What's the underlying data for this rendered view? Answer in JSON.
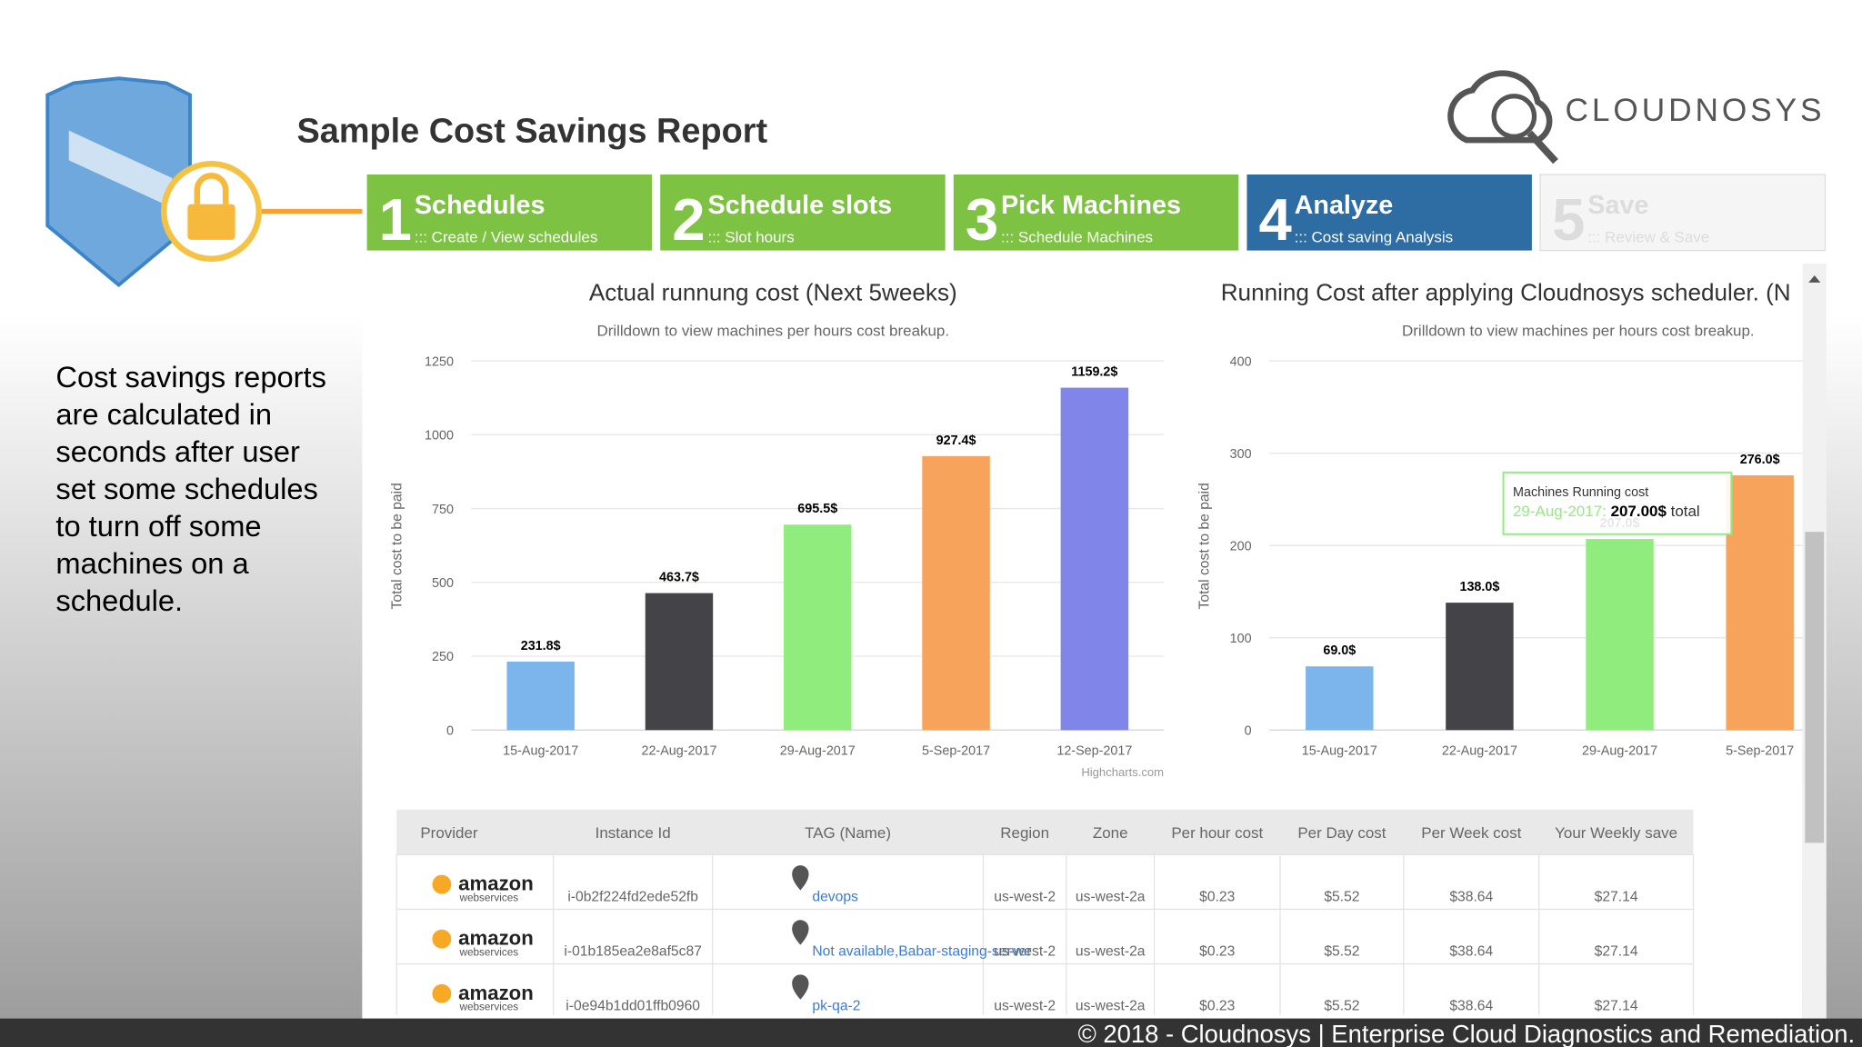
{
  "header": {
    "title": "Sample Cost Savings Report",
    "logo": "CLOUDNOSYS"
  },
  "steps": [
    {
      "number": "1",
      "title": "Schedules",
      "subtitle": "::: Create / View schedules"
    },
    {
      "number": "2",
      "title": "Schedule slots",
      "subtitle": "::: Slot hours"
    },
    {
      "number": "3",
      "title": "Pick Machines",
      "subtitle": "::: Schedule Machines"
    },
    {
      "number": "4",
      "title": "Analyze",
      "subtitle": "::: Cost saving Analysis"
    },
    {
      "number": "5",
      "title": "Save",
      "subtitle": "::: Review & Save"
    }
  ],
  "side_text": [
    "Cost savings reports",
    "are calculated in",
    "seconds  after user",
    "set some schedules",
    "to turn off some",
    "machines on a",
    "schedule."
  ],
  "chart_data": [
    {
      "type": "bar",
      "title": "Actual runnung cost (Next 5weeks)",
      "subtitle": "Drilldown to view machines per hours cost breakup.",
      "y_label": "Total cost to be paid",
      "categories": [
        "15-Aug-2017",
        "22-Aug-2017",
        "29-Aug-2017",
        "5-Sep-2017",
        "12-Sep-2017"
      ],
      "values": [
        231.8,
        463.7,
        695.5,
        927.4,
        1159.2
      ],
      "value_labels": [
        "231.8$",
        "463.7$",
        "695.5$",
        "927.4$",
        "1159.2$"
      ],
      "colors": [
        "#7cb5ec",
        "#434348",
        "#90ed7d",
        "#f7a35c",
        "#8085e9"
      ],
      "ylim": [
        0,
        1250
      ],
      "yticks": [
        0,
        250,
        500,
        750,
        1000,
        1250
      ],
      "grid": true,
      "credit": "Highcharts.com"
    },
    {
      "type": "bar",
      "title": "Running Cost after applying Cloudnosys scheduler. (N",
      "subtitle": "Drilldown to view machines per hours cost breakup.",
      "y_label": "Total cost to be paid",
      "categories": [
        "15-Aug-2017",
        "22-Aug-2017",
        "29-Aug-2017",
        "5-Sep-2017"
      ],
      "values": [
        69.0,
        138.0,
        207.0,
        276.0
      ],
      "value_labels": [
        "69.0$",
        "138.0$",
        "207.0$",
        "276.0$"
      ],
      "colors": [
        "#7cb5ec",
        "#434348",
        "#90ed7d",
        "#f7a35c"
      ],
      "ylim": [
        0,
        400
      ],
      "yticks": [
        0,
        100,
        200,
        300,
        400
      ],
      "grid": true,
      "tooltip": {
        "title": "Machines Running cost",
        "category": "29-Aug-2017:",
        "value": "207.00$",
        "suffix": "total"
      }
    }
  ],
  "table": {
    "columns": [
      "Provider",
      "Instance Id",
      "TAG (Name)",
      "Region",
      "Zone",
      "Per hour cost",
      "Per Day cost",
      "Per Week cost",
      "Your Weekly save"
    ],
    "rows": [
      [
        {
          "name": "amazon",
          "sub": "webservices"
        },
        "i-0b2f224fd2ede52fb",
        "devops",
        "us-west-2",
        "us-west-2a",
        "$0.23",
        "$5.52",
        "$38.64",
        "$27.14"
      ],
      [
        {
          "name": "amazon",
          "sub": "webservices"
        },
        "i-01b185ea2e8af5c87",
        "Not available,Babar-staging-server",
        "us-west-2",
        "us-west-2a",
        "$0.23",
        "$5.52",
        "$38.64",
        "$27.14"
      ],
      [
        {
          "name": "amazon",
          "sub": "webservices"
        },
        "i-0e94b1dd01ffb0960",
        "pk-qa-2",
        "us-west-2",
        "us-west-2a",
        "$0.23",
        "$5.52",
        "$38.64",
        "$27.14"
      ]
    ]
  },
  "footer": "© 2018 - Cloudnosys | Enterprise Cloud Diagnostics and Remediation."
}
